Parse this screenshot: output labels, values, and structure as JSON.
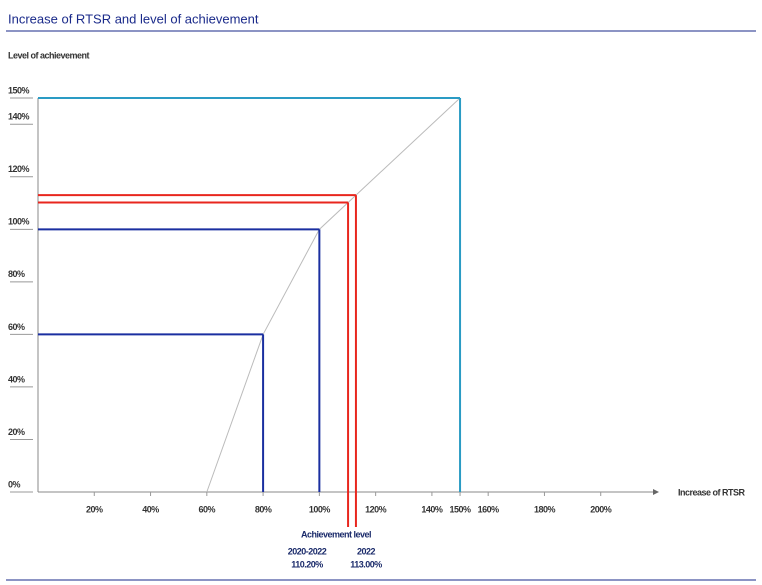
{
  "chart_data": {
    "type": "line",
    "title": "Increase of RTSR and level of achievement",
    "y_label": "Level of achievement",
    "x_label": "Increase of RTSR",
    "annotation": "Achievement level",
    "xlim": [
      0,
      220
    ],
    "ylim": [
      0,
      150
    ],
    "xticks": [
      {
        "value": 20,
        "label": "20%"
      },
      {
        "value": 40,
        "label": "40%"
      },
      {
        "value": 60,
        "label": "60%"
      },
      {
        "value": 80,
        "label": "80%"
      },
      {
        "value": 100,
        "label": "100%"
      },
      {
        "value": 120,
        "label": "120%"
      },
      {
        "value": 140,
        "label": "140%"
      },
      {
        "value": 150,
        "label": "150%",
        "color": "#2a9bc4"
      },
      {
        "value": 160,
        "label": "160%"
      },
      {
        "value": 180,
        "label": "180%"
      },
      {
        "value": 200,
        "label": "200%"
      }
    ],
    "yticks": [
      {
        "value": 0,
        "label": "0%"
      },
      {
        "value": 20,
        "label": "20%"
      },
      {
        "value": 40,
        "label": "40%"
      },
      {
        "value": 60,
        "label": "60%"
      },
      {
        "value": 80,
        "label": "80%"
      },
      {
        "value": 100,
        "label": "100%"
      },
      {
        "value": 120,
        "label": "120%"
      },
      {
        "value": 140,
        "label": "140%"
      },
      {
        "value": 150,
        "label": "150%",
        "color": "#2a9bc4"
      }
    ],
    "curve": {
      "color": "#bbbbbb",
      "x": [
        60,
        80,
        100,
        150
      ],
      "values": [
        0,
        60,
        100,
        150
      ]
    },
    "points": [
      {
        "x": 80,
        "value": 60,
        "color": "#1a2fa0"
      },
      {
        "x": 100,
        "value": 100,
        "color": "#1a2fa0"
      },
      {
        "x": 110.2,
        "value": 110.2,
        "color": "#e8261e",
        "name": "2020-2022",
        "value_label": "110.20%"
      },
      {
        "x": 113,
        "value": 113,
        "color": "#e8261e",
        "name": "2022",
        "value_label": "113.00%"
      },
      {
        "x": 150,
        "value": 150,
        "color": "#2a9bc4"
      }
    ]
  }
}
